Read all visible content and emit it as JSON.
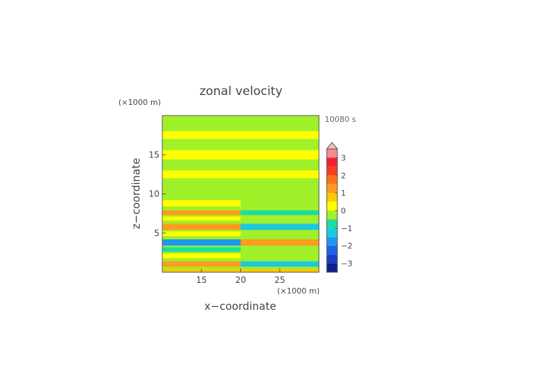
{
  "chart_data": {
    "type": "heatmap",
    "title": "zonal velocity",
    "xlabel": "x−coordinate",
    "ylabel": "z−coordinate",
    "x_unit": "(×1000 m)",
    "y_unit": "(×1000 m)",
    "time_label": "10080 s",
    "xlim": [
      10,
      30
    ],
    "ylim": [
      0,
      20
    ],
    "x_ticks": [
      15,
      20,
      25
    ],
    "y_ticks": [
      5,
      10,
      15
    ],
    "colorbar": {
      "tick_values": [
        3,
        2,
        1,
        0,
        -1,
        -2,
        -3
      ],
      "tick_labels": [
        "3",
        "2",
        "1",
        "0",
        "−1",
        "−2",
        "−3"
      ],
      "levels": [
        -3.5,
        -3,
        -2.5,
        -2,
        -1.5,
        -1,
        -0.5,
        0,
        0.5,
        1,
        1.5,
        2,
        2.5,
        3,
        3.5
      ],
      "colors": [
        "#0b1f8a",
        "#1a3cc8",
        "#1e64e6",
        "#1e96f0",
        "#1ec8dc",
        "#1edca0",
        "#a0f02a",
        "#ffff00",
        "#ffc800",
        "#ff9b1e",
        "#ff6e1e",
        "#ff3c1e",
        "#f01e32",
        "#f58c8c"
      ],
      "extend_max": true
    },
    "features": [
      {
        "x0": 10,
        "x1": 30,
        "z0": 0,
        "z1": 0.4,
        "value": 0.9
      },
      {
        "x0": 10,
        "x1": 20,
        "z0": 0.7,
        "z1": 1.4,
        "value": 1.3
      },
      {
        "x0": 20,
        "x1": 30,
        "z0": 0.7,
        "z1": 1.4,
        "value": -1.4
      },
      {
        "x0": 10,
        "x1": 20,
        "z0": 1.8,
        "z1": 2.4,
        "value": 0.3
      },
      {
        "x0": 10,
        "x1": 20,
        "z0": 2.6,
        "z1": 3.2,
        "value": -0.6
      },
      {
        "x0": 10,
        "x1": 20,
        "z0": 3.4,
        "z1": 4.2,
        "value": -1.6
      },
      {
        "x0": 20,
        "x1": 30,
        "z0": 3.4,
        "z1": 4.2,
        "value": 1.1
      },
      {
        "x0": 10,
        "x1": 20,
        "z0": 4.6,
        "z1": 5.2,
        "value": 0.2
      },
      {
        "x0": 10,
        "x1": 20,
        "z0": 5.4,
        "z1": 6.2,
        "value": 1.0
      },
      {
        "x0": 20,
        "x1": 30,
        "z0": 5.4,
        "z1": 6.2,
        "value": -1.1
      },
      {
        "x0": 10,
        "x1": 20,
        "z0": 6.6,
        "z1": 7.1,
        "value": 0.2
      },
      {
        "x0": 10,
        "x1": 20,
        "z0": 7.3,
        "z1": 7.9,
        "value": 1.1
      },
      {
        "x0": 20,
        "x1": 30,
        "z0": 7.3,
        "z1": 7.9,
        "value": -0.9
      },
      {
        "x0": 10,
        "x1": 20,
        "z0": 8.4,
        "z1": 9.2,
        "value": 0.3
      },
      {
        "x0": 20,
        "x1": 30,
        "z0": 8.4,
        "z1": 9.2,
        "value": -0.2
      },
      {
        "x0": 10,
        "x1": 30,
        "z0": 9.5,
        "z1": 11.0,
        "value": -0.2
      },
      {
        "x0": 10,
        "x1": 30,
        "z0": 12.0,
        "z1": 13.0,
        "value": 0.25
      },
      {
        "x0": 10,
        "x1": 30,
        "z0": 14.4,
        "z1": 15.6,
        "value": 0.25
      },
      {
        "x0": 10,
        "x1": 30,
        "z0": 17.0,
        "z1": 18.0,
        "value": 0.2
      },
      {
        "x0": 10,
        "x1": 30,
        "z0": 18.8,
        "z1": 19.6,
        "value": -0.2
      }
    ],
    "background_value": -0.2
  }
}
